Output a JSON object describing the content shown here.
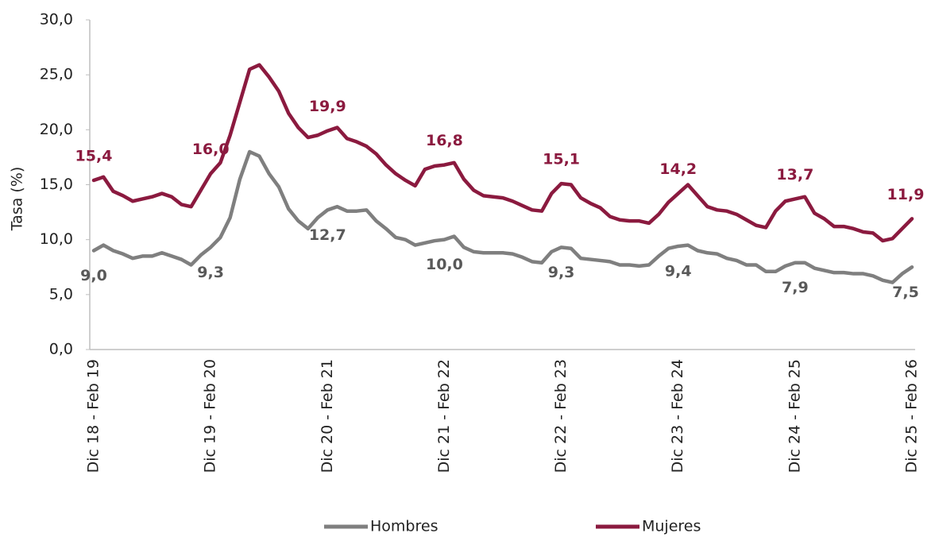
{
  "chart_data": {
    "type": "line",
    "y_label": "Tasa (%)",
    "categories": [
      "Dic 18 - Feb 19",
      null,
      null,
      null,
      null,
      null,
      null,
      null,
      null,
      null,
      null,
      null,
      "Dic 19 - Feb 20",
      null,
      null,
      null,
      null,
      null,
      null,
      null,
      null,
      null,
      null,
      null,
      "Dic 20 - Feb 21",
      null,
      null,
      null,
      null,
      null,
      null,
      null,
      null,
      null,
      null,
      null,
      "Dic 21 - Feb 22",
      null,
      null,
      null,
      null,
      null,
      null,
      null,
      null,
      null,
      null,
      null,
      "Dic 22 - Feb 23",
      null,
      null,
      null,
      null,
      null,
      null,
      null,
      null,
      null,
      null,
      null,
      "Dic 23 - Feb 24",
      null,
      null,
      null,
      null,
      null,
      null,
      null,
      null,
      null,
      null,
      null,
      "Dic 24 - Feb 25",
      null,
      null,
      null,
      null,
      null,
      null,
      null,
      null,
      null,
      null,
      null,
      "Dic 25 - Feb 26"
    ],
    "series": [
      {
        "name": "Hombres",
        "color": "#7f7f7f",
        "values": [
          9.0,
          9.5,
          9.0,
          8.7,
          8.3,
          8.5,
          8.5,
          8.8,
          8.5,
          8.2,
          7.7,
          8.6,
          9.3,
          10.2,
          12.0,
          15.5,
          18.0,
          17.6,
          16.0,
          14.8,
          12.8,
          11.7,
          11.0,
          12.0,
          12.7,
          13.0,
          12.6,
          12.6,
          12.7,
          11.7,
          11.0,
          10.2,
          10.0,
          9.5,
          9.7,
          9.9,
          10.0,
          10.3,
          9.3,
          8.9,
          8.8,
          8.8,
          8.8,
          8.7,
          8.4,
          8.0,
          7.9,
          8.9,
          9.3,
          9.2,
          8.3,
          8.2,
          8.1,
          8.0,
          7.7,
          7.7,
          7.6,
          7.7,
          8.5,
          9.2,
          9.4,
          9.5,
          9.0,
          8.8,
          8.7,
          8.3,
          8.1,
          7.7,
          7.7,
          7.1,
          7.1,
          7.6,
          7.9,
          7.9,
          7.4,
          7.2,
          7.0,
          7.0,
          6.9,
          6.9,
          6.7,
          6.3,
          6.1,
          6.9,
          7.5
        ],
        "value_labels": [
          "9,0",
          null,
          null,
          null,
          null,
          null,
          null,
          null,
          null,
          null,
          null,
          null,
          "9,3",
          null,
          null,
          null,
          null,
          null,
          null,
          null,
          null,
          null,
          null,
          null,
          "12,7",
          null,
          null,
          null,
          null,
          null,
          null,
          null,
          null,
          null,
          null,
          null,
          "10,0",
          null,
          null,
          null,
          null,
          null,
          null,
          null,
          null,
          null,
          null,
          null,
          "9,3",
          null,
          null,
          null,
          null,
          null,
          null,
          null,
          null,
          null,
          null,
          null,
          "9,4",
          null,
          null,
          null,
          null,
          null,
          null,
          null,
          null,
          null,
          null,
          null,
          "7,9",
          null,
          null,
          null,
          null,
          null,
          null,
          null,
          null,
          null,
          null,
          null,
          "7,5"
        ]
      },
      {
        "name": "Mujeres",
        "color": "#8b1a3f",
        "values": [
          15.4,
          15.7,
          14.4,
          14.0,
          13.5,
          13.7,
          13.9,
          14.2,
          13.9,
          13.2,
          13.0,
          14.5,
          16.0,
          17.0,
          19.5,
          22.5,
          25.5,
          25.9,
          24.8,
          23.5,
          21.5,
          20.2,
          19.3,
          19.5,
          19.9,
          20.2,
          19.2,
          18.9,
          18.5,
          17.8,
          16.8,
          16.0,
          15.4,
          14.9,
          16.4,
          16.7,
          16.8,
          17.0,
          15.5,
          14.5,
          14.0,
          13.9,
          13.8,
          13.5,
          13.1,
          12.7,
          12.6,
          14.2,
          15.1,
          15.0,
          13.8,
          13.3,
          12.9,
          12.1,
          11.8,
          11.7,
          11.7,
          11.5,
          12.3,
          13.4,
          14.2,
          15.0,
          14.0,
          13.0,
          12.7,
          12.6,
          12.3,
          11.8,
          11.3,
          11.1,
          12.6,
          13.5,
          13.7,
          13.9,
          12.4,
          11.9,
          11.2,
          11.2,
          11.0,
          10.7,
          10.6,
          9.9,
          10.1,
          11.0,
          11.9
        ],
        "value_labels": [
          "15,4",
          null,
          null,
          null,
          null,
          null,
          null,
          null,
          null,
          null,
          null,
          null,
          "16,0",
          null,
          null,
          null,
          null,
          null,
          null,
          null,
          null,
          null,
          null,
          null,
          "19,9",
          null,
          null,
          null,
          null,
          null,
          null,
          null,
          null,
          null,
          null,
          null,
          "16,8",
          null,
          null,
          null,
          null,
          null,
          null,
          null,
          null,
          null,
          null,
          null,
          "15,1",
          null,
          null,
          null,
          null,
          null,
          null,
          null,
          null,
          null,
          null,
          null,
          "14,2",
          null,
          null,
          null,
          null,
          null,
          null,
          null,
          null,
          null,
          null,
          null,
          "13,7",
          null,
          null,
          null,
          null,
          null,
          null,
          null,
          null,
          null,
          null,
          null,
          "11,9"
        ]
      }
    ],
    "ylim": [
      0,
      30
    ],
    "yticks": [
      {
        "value": 0,
        "label": "0,0"
      },
      {
        "value": 5,
        "label": "5,0"
      },
      {
        "value": 10,
        "label": "10,0"
      },
      {
        "value": 15,
        "label": "15,0"
      },
      {
        "value": 20,
        "label": "20,0"
      },
      {
        "value": 25,
        "label": "25,0"
      },
      {
        "value": 30,
        "label": "30,0"
      }
    ],
    "legend": "bottom",
    "grid": false
  }
}
